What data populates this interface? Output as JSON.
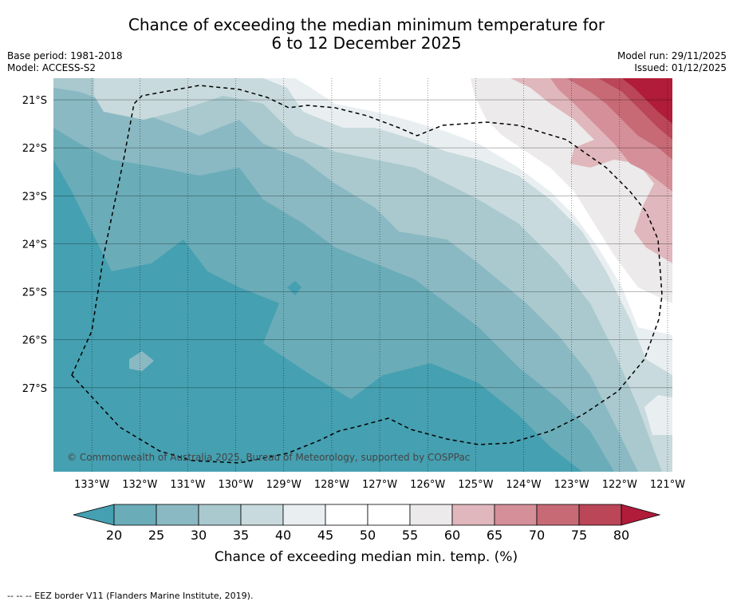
{
  "title": {
    "line1": "Chance of exceeding the median minimum temperature for",
    "line2": "6 to 12 December 2025"
  },
  "meta": {
    "base_period": "Base period: 1981-2018",
    "model": "Model: ACCESS-S2",
    "model_run": "Model run: 29/11/2025",
    "issued": "Issued: 01/12/2025"
  },
  "map": {
    "lat_labels": [
      "21°S",
      "22°S",
      "23°S",
      "24°S",
      "25°S",
      "26°S",
      "27°S"
    ],
    "lat_values": [
      -21,
      -22,
      -23,
      -24,
      -25,
      -26,
      -27
    ],
    "lon_labels": [
      "133°W",
      "132°W",
      "131°W",
      "130°W",
      "129°W",
      "128°W",
      "127°W",
      "126°W",
      "125°W",
      "124°W",
      "123°W",
      "122°W",
      "121°W"
    ],
    "lon_values": [
      -133,
      -132,
      -131,
      -130,
      -129,
      -128,
      -127,
      -126,
      -125,
      -124,
      -123,
      -122,
      -121
    ],
    "extent": {
      "lon_min": -133.8,
      "lon_max": -120.9,
      "lat_max": -20.55,
      "lat_min": -28.75
    },
    "copyright": "© Commonwealth of Australia 2025, Bureau of Meteorology, supported by COSPPac"
  },
  "colorbar": {
    "ticks": [
      "20",
      "25",
      "30",
      "35",
      "40",
      "45",
      "50",
      "55",
      "60",
      "65",
      "70",
      "75",
      "80"
    ],
    "label": "Chance of exceeding median min. temp. (%)",
    "colors": {
      "lt20": "#45a0b1",
      "b20_25": "#6aacb8",
      "b25_30": "#8ab9c3",
      "b30_35": "#a9c9ce",
      "b35_40": "#c8dadd",
      "b40_45": "#e9eff1",
      "b45_50": "#ffffff",
      "b50_55": "#ffffff",
      "b55_60": "#eceaeb",
      "b60_65": "#e0b7bc",
      "b65_70": "#d48f98",
      "b70_75": "#c76a76",
      "b75_80": "#ba4658",
      "gt80": "#b01c3a"
    }
  },
  "footer": {
    "legend": "--  --  -- EEZ border V11 (Flanders Marine Institute, 2019)."
  }
}
